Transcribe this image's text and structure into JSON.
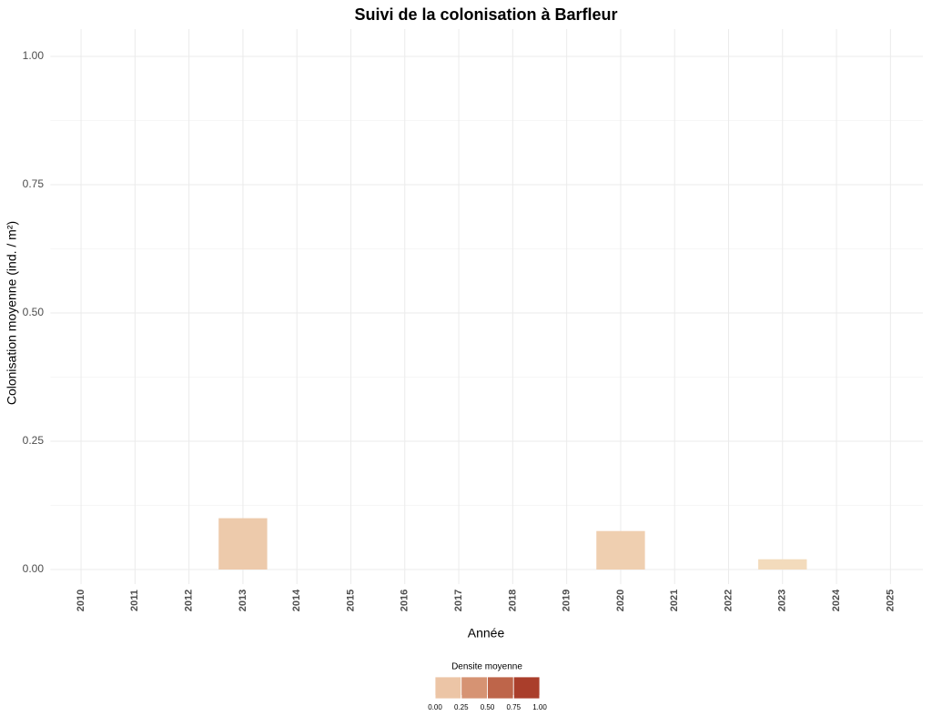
{
  "chart_data": {
    "type": "bar",
    "title": "Suivi de la colonisation à Barfleur",
    "x_label": "Année",
    "y_label": "Colonisation moyenne (ind. / m²)",
    "categories": [
      "2010",
      "2011",
      "2012",
      "2013",
      "2014",
      "2015",
      "2016",
      "2017",
      "2018",
      "2019",
      "2020",
      "2021",
      "2022",
      "2023",
      "2024",
      "2025"
    ],
    "values": [
      0,
      0,
      0,
      0.1,
      0,
      0,
      0,
      0,
      0,
      0,
      0.075,
      0,
      0,
      0.02,
      0,
      0
    ],
    "ylim": [
      0,
      1
    ],
    "yticks": [
      {
        "value": 0,
        "label": "0.00"
      },
      {
        "value": 0.25,
        "label": "0.25"
      },
      {
        "value": 0.5,
        "label": "0.50"
      },
      {
        "value": 0.75,
        "label": "0.75"
      },
      {
        "value": 1,
        "label": "1.00"
      }
    ],
    "grid": true,
    "fill_scale": {
      "title": "Densite moyenne",
      "colors": [
        "#f5dfc0",
        "#e2ab8c",
        "#c97a5a",
        "#b3503a",
        "#a02c1c"
      ],
      "ticks": [
        {
          "value": 0,
          "label": "0.00"
        },
        {
          "value": 0.25,
          "label": "0.25"
        },
        {
          "value": 0.5,
          "label": "0.50"
        },
        {
          "value": 0.75,
          "label": "0.75"
        },
        {
          "value": 1,
          "label": "1.00"
        }
      ]
    }
  }
}
